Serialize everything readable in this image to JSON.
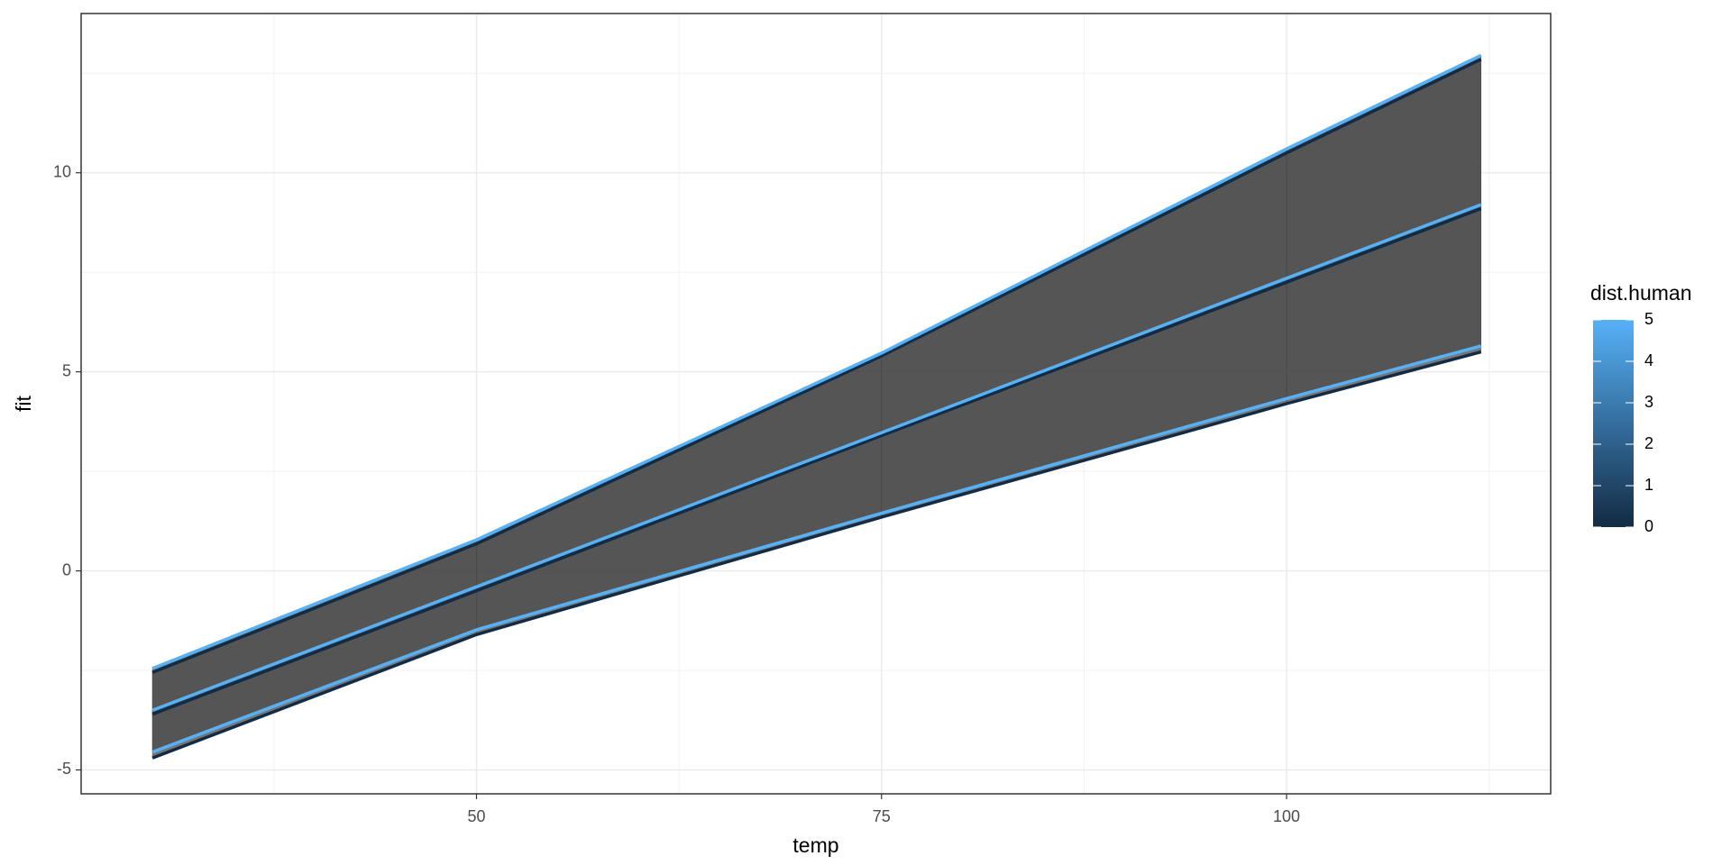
{
  "chart_data": {
    "type": "ribbon",
    "x_label": "temp",
    "y_label": "fit",
    "x": [
      30,
      50,
      75,
      100,
      112
    ],
    "groups": [
      {
        "color_value": 0,
        "lower": [
          -4.7,
          -1.6,
          1.35,
          4.2,
          5.5
        ],
        "fit": [
          -3.6,
          -0.5,
          3.4,
          7.25,
          9.1
        ],
        "upper": [
          -2.55,
          0.68,
          5.4,
          10.5,
          12.85
        ]
      },
      {
        "color_value": 5,
        "lower": [
          -4.55,
          -1.48,
          1.45,
          4.33,
          5.65
        ],
        "fit": [
          -3.5,
          -0.4,
          3.47,
          7.35,
          9.2
        ],
        "upper": [
          -2.45,
          0.78,
          5.47,
          10.6,
          12.95
        ]
      }
    ],
    "ribbon_color": "#4a4a4a",
    "xlim": [
      25.6,
      116.3
    ],
    "ylim": [
      -5.6,
      14
    ],
    "xticks": [
      50,
      75,
      100
    ],
    "yticks": [
      -5,
      0,
      5,
      10
    ],
    "grid": true,
    "legend": {
      "title": "dist.human",
      "lim": [
        0,
        5
      ],
      "ticks": [
        0,
        1,
        2,
        3,
        4,
        5
      ],
      "low_color": "#132B43",
      "high_color": "#56B1F7",
      "position": "right"
    }
  }
}
